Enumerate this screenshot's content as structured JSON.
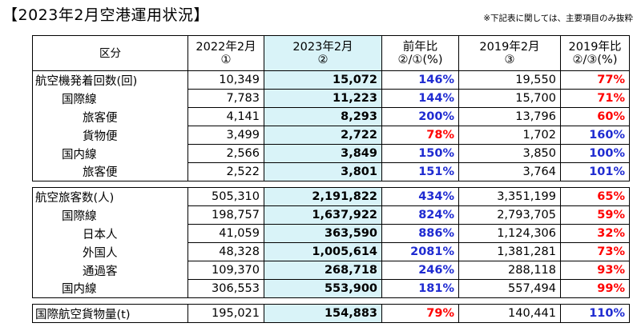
{
  "title": "【2023年2月空港運用状況】",
  "note": "※下記表に関しては、主要項目のみ抜粋",
  "header": {
    "category": "区分",
    "col1": [
      "2022年2月",
      "①"
    ],
    "col2": [
      "2023年2月",
      "②"
    ],
    "col3": [
      "前年比",
      "②/①(%)"
    ],
    "col4": [
      "2019年2月",
      "③"
    ],
    "col5": [
      "2019年比",
      "②/③(%)"
    ]
  },
  "colors": {
    "highlight": "#d9f3f8",
    "increase": "#1f2bd1",
    "decrease": "#ff0000"
  },
  "groups": [
    {
      "rows": [
        {
          "label": "航空機発着回数(回)",
          "level": 0,
          "v2022": "10,349",
          "v2023": "15,072",
          "yoy": "146%",
          "yoy_color": "blue",
          "v2019": "19,550",
          "vs2019": "77%",
          "vs2019_color": "red"
        },
        {
          "label": "国際線",
          "level": 1,
          "v2022": "7,783",
          "v2023": "11,223",
          "yoy": "144%",
          "yoy_color": "blue",
          "v2019": "15,700",
          "vs2019": "71%",
          "vs2019_color": "red"
        },
        {
          "label": "旅客便",
          "level": 2,
          "v2022": "4,141",
          "v2023": "8,293",
          "yoy": "200%",
          "yoy_color": "blue",
          "v2019": "13,796",
          "vs2019": "60%",
          "vs2019_color": "red"
        },
        {
          "label": "貨物便",
          "level": 2,
          "v2022": "3,499",
          "v2023": "2,722",
          "yoy": "78%",
          "yoy_color": "red",
          "v2019": "1,702",
          "vs2019": "160%",
          "vs2019_color": "blue"
        },
        {
          "label": "国内線",
          "level": 1,
          "v2022": "2,566",
          "v2023": "3,849",
          "yoy": "150%",
          "yoy_color": "blue",
          "v2019": "3,850",
          "vs2019": "100%",
          "vs2019_color": "blue"
        },
        {
          "label": "旅客便",
          "level": 2,
          "v2022": "2,522",
          "v2023": "3,801",
          "yoy": "151%",
          "yoy_color": "blue",
          "v2019": "3,764",
          "vs2019": "101%",
          "vs2019_color": "blue"
        }
      ]
    },
    {
      "rows": [
        {
          "label": "航空旅客数(人)",
          "level": 0,
          "v2022": "505,310",
          "v2023": "2,191,822",
          "yoy": "434%",
          "yoy_color": "blue",
          "v2019": "3,351,199",
          "vs2019": "65%",
          "vs2019_color": "red"
        },
        {
          "label": "国際線",
          "level": 1,
          "v2022": "198,757",
          "v2023": "1,637,922",
          "yoy": "824%",
          "yoy_color": "blue",
          "v2019": "2,793,705",
          "vs2019": "59%",
          "vs2019_color": "red"
        },
        {
          "label": "日本人",
          "level": 2,
          "v2022": "41,059",
          "v2023": "363,590",
          "yoy": "886%",
          "yoy_color": "blue",
          "v2019": "1,124,306",
          "vs2019": "32%",
          "vs2019_color": "red"
        },
        {
          "label": "外国人",
          "level": 2,
          "v2022": "48,328",
          "v2023": "1,005,614",
          "yoy": "2081%",
          "yoy_color": "blue",
          "v2019": "1,381,281",
          "vs2019": "73%",
          "vs2019_color": "red"
        },
        {
          "label": "通過客",
          "level": 2,
          "v2022": "109,370",
          "v2023": "268,718",
          "yoy": "246%",
          "yoy_color": "blue",
          "v2019": "288,118",
          "vs2019": "93%",
          "vs2019_color": "red"
        },
        {
          "label": "国内線",
          "level": 1,
          "v2022": "306,553",
          "v2023": "553,900",
          "yoy": "181%",
          "yoy_color": "blue",
          "v2019": "557,494",
          "vs2019": "99%",
          "vs2019_color": "red"
        }
      ]
    },
    {
      "rows": [
        {
          "label": "国際航空貨物量(t)",
          "level": 0,
          "v2022": "195,021",
          "v2023": "154,883",
          "yoy": "79%",
          "yoy_color": "red",
          "v2019": "140,441",
          "vs2019": "110%",
          "vs2019_color": "blue"
        }
      ]
    }
  ]
}
